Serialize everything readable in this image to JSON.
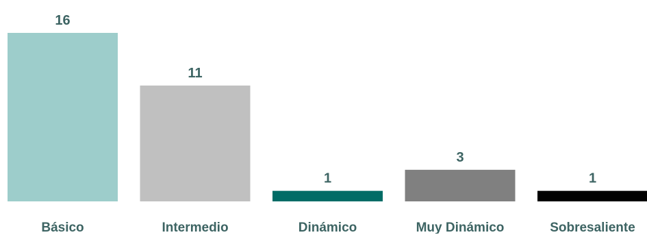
{
  "chart_data": {
    "type": "bar",
    "categories": [
      "Básico",
      "Intermedio",
      "Dinámico",
      "Muy Dinámico",
      "Sobresaliente"
    ],
    "values": [
      16,
      11,
      1,
      3,
      1
    ],
    "data_labels": [
      "16",
      "11",
      "1",
      "3",
      "1"
    ],
    "colors": [
      "#9dcdcb",
      "#c0c0c0",
      "#006c66",
      "#808080",
      "#000000"
    ],
    "label_color": "#3d6463",
    "ylim": [
      0,
      16
    ],
    "grid": false,
    "legend": "none",
    "title": "",
    "xlabel": "",
    "ylabel": ""
  }
}
